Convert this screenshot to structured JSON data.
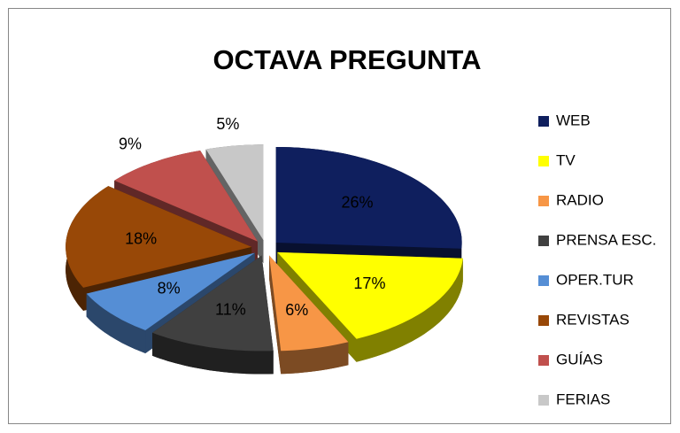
{
  "chart_data": {
    "type": "pie3d",
    "title": "OCTAVA PREGUNTA",
    "categories": [
      "WEB",
      "TV",
      "RADIO",
      "PRENSA ESC.",
      "OPER.TUR",
      "REVISTAS",
      "GUÍAS",
      "FERIAS"
    ],
    "values": [
      26,
      17,
      6,
      11,
      8,
      18,
      9,
      5
    ],
    "value_labels": [
      "26%",
      "17%",
      "6%",
      "11%",
      "8%",
      "18%",
      "9%",
      "5%"
    ],
    "colors": [
      "#0f1f5e",
      "#ffff00",
      "#f79646",
      "#404040",
      "#558ed5",
      "#984807",
      "#c0504d",
      "#c8c8c8"
    ],
    "legend": "right"
  }
}
